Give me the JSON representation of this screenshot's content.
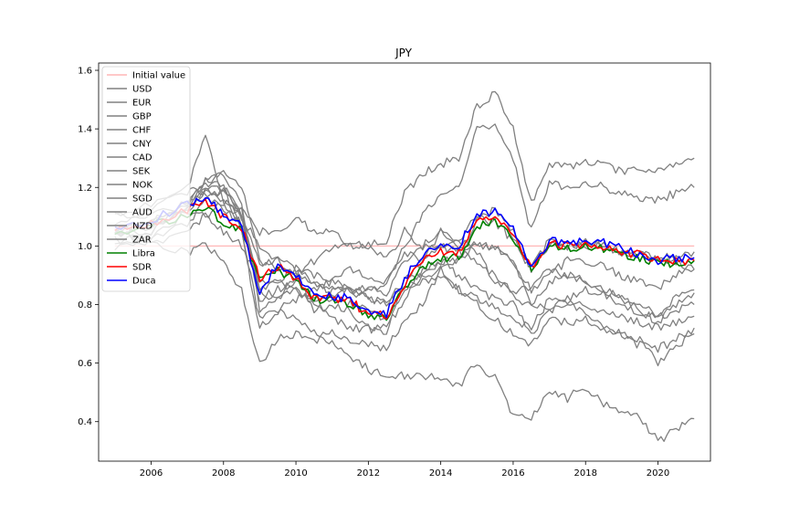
{
  "chart_data": {
    "type": "line",
    "title": "JPY",
    "xlabel": "",
    "ylabel": "",
    "xlim": [
      2004.55,
      2021.45
    ],
    "ylim": [
      0.265,
      1.625
    ],
    "x_ticks": [
      {
        "value": 2006,
        "label": "2006"
      },
      {
        "value": 2008,
        "label": "2008"
      },
      {
        "value": 2010,
        "label": "2010"
      },
      {
        "value": 2012,
        "label": "2012"
      },
      {
        "value": 2014,
        "label": "2014"
      },
      {
        "value": 2016,
        "label": "2016"
      },
      {
        "value": 2018,
        "label": "2018"
      },
      {
        "value": 2020,
        "label": "2020"
      }
    ],
    "y_ticks": [
      {
        "value": 0.4,
        "label": "0.4"
      },
      {
        "value": 0.6,
        "label": "0.6"
      },
      {
        "value": 0.8,
        "label": "0.8"
      },
      {
        "value": 1.0,
        "label": "1.0"
      },
      {
        "value": 1.2,
        "label": "1.2"
      },
      {
        "value": 1.4,
        "label": "1.4"
      },
      {
        "value": 1.6,
        "label": "1.6"
      }
    ],
    "legend_position": "top-left",
    "grid": false,
    "series": [
      {
        "name": "Initial value",
        "color": "#ffb6b6",
        "x": [
          2005.0,
          2021.0
        ],
        "y": [
          1.0,
          1.0
        ]
      },
      {
        "name": "USD",
        "color": "#808080",
        "x": [
          2005.0,
          2006.0,
          2007.0,
          2007.5,
          2008.0,
          2008.5,
          2009.0,
          2009.5,
          2010.0,
          2010.5,
          2011.0,
          2011.5,
          2012.0,
          2012.5,
          2013.0,
          2013.5,
          2014.0,
          2014.5,
          2015.0,
          2015.5,
          2016.0,
          2016.5,
          2017.0,
          2017.5,
          2018.0,
          2018.5,
          2019.0,
          2019.5,
          2020.0,
          2020.5,
          2021.0
        ],
        "y": [
          1.05,
          1.08,
          1.12,
          1.1,
          1.05,
          1.0,
          0.88,
          0.88,
          0.84,
          0.8,
          0.75,
          0.72,
          0.72,
          0.72,
          0.82,
          0.9,
          0.95,
          0.95,
          1.1,
          1.12,
          1.05,
          0.92,
          1.02,
          1.0,
          1.0,
          1.0,
          0.98,
          0.97,
          0.96,
          0.95,
          0.92
        ]
      },
      {
        "name": "EUR",
        "color": "#808080",
        "x": [
          2005.0,
          2006.0,
          2007.0,
          2007.5,
          2008.0,
          2008.5,
          2009.0,
          2009.5,
          2010.0,
          2010.5,
          2011.0,
          2011.5,
          2012.0,
          2012.5,
          2013.0,
          2013.5,
          2014.0,
          2014.5,
          2015.0,
          2015.5,
          2016.0,
          2016.5,
          2017.0,
          2017.5,
          2018.0,
          2018.5,
          2019.0,
          2019.5,
          2020.0,
          2020.5,
          2021.0
        ],
        "y": [
          1.0,
          1.05,
          1.15,
          1.22,
          1.25,
          1.2,
          0.95,
          0.95,
          0.9,
          0.78,
          0.8,
          0.78,
          0.72,
          0.7,
          0.88,
          0.95,
          1.05,
          1.0,
          1.0,
          1.0,
          0.95,
          0.85,
          0.9,
          0.95,
          0.95,
          0.93,
          0.9,
          0.88,
          0.86,
          0.9,
          0.92
        ]
      },
      {
        "name": "GBP",
        "color": "#808080",
        "x": [
          2005.0,
          2006.0,
          2007.0,
          2007.5,
          2008.0,
          2008.5,
          2009.0,
          2009.5,
          2010.0,
          2010.5,
          2011.0,
          2011.5,
          2012.0,
          2012.5,
          2013.0,
          2013.5,
          2014.0,
          2014.5,
          2015.0,
          2015.5,
          2016.0,
          2016.5,
          2017.0,
          2017.5,
          2018.0,
          2018.5,
          2019.0,
          2019.5,
          2020.0,
          2020.5,
          2021.0
        ],
        "y": [
          1.1,
          1.12,
          1.2,
          1.38,
          1.15,
          1.05,
          0.75,
          0.78,
          0.75,
          0.7,
          0.7,
          0.68,
          0.67,
          0.65,
          0.75,
          0.8,
          0.92,
          0.96,
          1.0,
          1.0,
          0.95,
          0.8,
          0.78,
          0.82,
          0.85,
          0.84,
          0.8,
          0.76,
          0.76,
          0.78,
          0.8
        ]
      },
      {
        "name": "CHF",
        "color": "#808080",
        "x": [
          2005.0,
          2006.0,
          2007.0,
          2007.5,
          2008.0,
          2008.5,
          2009.0,
          2009.5,
          2010.0,
          2010.5,
          2011.0,
          2011.5,
          2012.0,
          2012.5,
          2013.0,
          2013.5,
          2014.0,
          2014.5,
          2015.0,
          2015.5,
          2016.0,
          2016.5,
          2017.0,
          2017.5,
          2018.0,
          2018.5,
          2019.0,
          2019.5,
          2020.0,
          2020.5,
          2021.0
        ],
        "y": [
          1.02,
          1.0,
          1.05,
          1.1,
          1.15,
          1.12,
          1.05,
          1.05,
          1.1,
          1.05,
          1.05,
          1.0,
          1.0,
          1.02,
          1.18,
          1.25,
          1.28,
          1.3,
          1.48,
          1.52,
          1.4,
          1.15,
          1.28,
          1.27,
          1.29,
          1.28,
          1.25,
          1.26,
          1.26,
          1.28,
          1.3
        ]
      },
      {
        "name": "CNY",
        "color": "#808080",
        "x": [
          2005.0,
          2006.0,
          2007.0,
          2007.5,
          2008.0,
          2008.5,
          2009.0,
          2009.5,
          2010.0,
          2010.5,
          2011.0,
          2011.5,
          2012.0,
          2012.5,
          2013.0,
          2013.5,
          2014.0,
          2014.5,
          2015.0,
          2015.5,
          2016.0,
          2016.5,
          2017.0,
          2017.5,
          2018.0,
          2018.5,
          2019.0,
          2019.5,
          2020.0,
          2020.5,
          2021.0
        ],
        "y": [
          1.1,
          1.14,
          1.18,
          1.2,
          1.15,
          1.1,
          1.0,
          0.95,
          0.92,
          0.88,
          0.84,
          0.85,
          0.86,
          0.86,
          1.0,
          1.1,
          1.18,
          1.2,
          1.4,
          1.42,
          1.3,
          1.05,
          1.22,
          1.2,
          1.22,
          1.2,
          1.18,
          1.16,
          1.16,
          1.18,
          1.2
        ]
      },
      {
        "name": "CAD",
        "color": "#808080",
        "x": [
          2005.0,
          2006.0,
          2007.0,
          2007.5,
          2008.0,
          2008.5,
          2009.0,
          2009.5,
          2010.0,
          2010.5,
          2011.0,
          2011.5,
          2012.0,
          2012.5,
          2013.0,
          2013.5,
          2014.0,
          2014.5,
          2015.0,
          2015.5,
          2016.0,
          2016.5,
          2017.0,
          2017.5,
          2018.0,
          2018.5,
          2019.0,
          2019.5,
          2020.0,
          2020.5,
          2021.0
        ],
        "y": [
          1.0,
          1.02,
          1.08,
          1.15,
          1.2,
          1.1,
          0.85,
          0.88,
          0.92,
          0.9,
          0.88,
          0.85,
          0.82,
          0.8,
          0.85,
          0.88,
          0.9,
          0.85,
          0.82,
          0.8,
          0.75,
          0.72,
          0.82,
          0.8,
          0.8,
          0.78,
          0.76,
          0.74,
          0.72,
          0.74,
          0.76
        ]
      },
      {
        "name": "SEK",
        "color": "#808080",
        "x": [
          2005.0,
          2006.0,
          2007.0,
          2007.5,
          2008.0,
          2008.5,
          2009.0,
          2009.5,
          2010.0,
          2010.5,
          2011.0,
          2011.5,
          2012.0,
          2012.5,
          2013.0,
          2013.5,
          2014.0,
          2014.5,
          2015.0,
          2015.5,
          2016.0,
          2016.5,
          2017.0,
          2017.5,
          2018.0,
          2018.5,
          2019.0,
          2019.5,
          2020.0,
          2020.5,
          2021.0
        ],
        "y": [
          1.05,
          1.05,
          1.12,
          1.2,
          1.2,
          1.1,
          0.85,
          0.82,
          0.85,
          0.8,
          0.82,
          0.8,
          0.78,
          0.75,
          0.85,
          0.92,
          0.95,
          0.9,
          0.85,
          0.82,
          0.8,
          0.7,
          0.78,
          0.8,
          0.78,
          0.72,
          0.7,
          0.66,
          0.65,
          0.68,
          0.72
        ]
      },
      {
        "name": "NOK",
        "color": "#808080",
        "x": [
          2005.0,
          2006.0,
          2007.0,
          2007.5,
          2008.0,
          2008.5,
          2009.0,
          2009.5,
          2010.0,
          2010.5,
          2011.0,
          2011.5,
          2012.0,
          2012.5,
          2013.0,
          2013.5,
          2014.0,
          2014.5,
          2015.0,
          2015.5,
          2016.0,
          2016.5,
          2017.0,
          2017.5,
          2018.0,
          2018.5,
          2019.0,
          2019.5,
          2020.0,
          2020.5,
          2021.0
        ],
        "y": [
          1.05,
          1.06,
          1.12,
          1.18,
          1.18,
          1.12,
          0.8,
          0.85,
          0.88,
          0.82,
          0.84,
          0.85,
          0.82,
          0.8,
          0.88,
          0.9,
          0.92,
          0.85,
          0.8,
          0.75,
          0.7,
          0.66,
          0.75,
          0.74,
          0.75,
          0.72,
          0.7,
          0.68,
          0.6,
          0.66,
          0.7
        ]
      },
      {
        "name": "SGD",
        "color": "#808080",
        "x": [
          2005.0,
          2006.0,
          2007.0,
          2007.5,
          2008.0,
          2008.5,
          2009.0,
          2009.5,
          2010.0,
          2010.5,
          2011.0,
          2011.5,
          2012.0,
          2012.5,
          2013.0,
          2013.5,
          2014.0,
          2014.5,
          2015.0,
          2015.5,
          2016.0,
          2016.5,
          2017.0,
          2017.5,
          2018.0,
          2018.5,
          2019.0,
          2019.5,
          2020.0,
          2020.5,
          2021.0
        ],
        "y": [
          1.08,
          1.1,
          1.15,
          1.18,
          1.12,
          1.08,
          0.95,
          0.92,
          0.9,
          0.88,
          0.86,
          0.86,
          0.85,
          0.84,
          0.95,
          1.0,
          1.05,
          1.02,
          1.1,
          1.08,
          1.02,
          0.92,
          1.0,
          1.0,
          1.02,
          1.0,
          0.98,
          0.97,
          0.96,
          0.96,
          0.98
        ]
      },
      {
        "name": "AUD",
        "color": "#808080",
        "x": [
          2005.0,
          2006.0,
          2007.0,
          2007.5,
          2008.0,
          2008.5,
          2009.0,
          2009.5,
          2010.0,
          2010.5,
          2011.0,
          2011.5,
          2012.0,
          2012.5,
          2013.0,
          2013.5,
          2014.0,
          2014.5,
          2015.0,
          2015.5,
          2016.0,
          2016.5,
          2017.0,
          2017.5,
          2018.0,
          2018.5,
          2019.0,
          2019.5,
          2020.0,
          2020.5,
          2021.0
        ],
        "y": [
          1.05,
          1.08,
          1.15,
          1.22,
          1.25,
          1.15,
          0.78,
          0.82,
          0.9,
          0.95,
          1.0,
          1.02,
          1.0,
          0.95,
          1.05,
          1.0,
          1.0,
          0.98,
          0.95,
          0.9,
          0.82,
          0.8,
          0.88,
          0.9,
          0.88,
          0.85,
          0.82,
          0.8,
          0.76,
          0.82,
          0.85
        ]
      },
      {
        "name": "NZD",
        "color": "#808080",
        "x": [
          2005.0,
          2006.0,
          2007.0,
          2007.5,
          2008.0,
          2008.5,
          2009.0,
          2009.5,
          2010.0,
          2010.5,
          2011.0,
          2011.5,
          2012.0,
          2012.5,
          2013.0,
          2013.5,
          2014.0,
          2014.5,
          2015.0,
          2015.5,
          2016.0,
          2016.5,
          2017.0,
          2017.5,
          2018.0,
          2018.5,
          2019.0,
          2019.5,
          2020.0,
          2020.5,
          2021.0
        ],
        "y": [
          1.05,
          1.02,
          1.12,
          1.22,
          1.2,
          1.05,
          0.72,
          0.78,
          0.82,
          0.85,
          0.88,
          0.92,
          0.9,
          0.88,
          0.98,
          0.95,
          1.0,
          1.02,
          0.98,
          0.88,
          0.85,
          0.85,
          0.92,
          0.9,
          0.88,
          0.85,
          0.82,
          0.78,
          0.74,
          0.8,
          0.84
        ]
      },
      {
        "name": "ZAR",
        "color": "#808080",
        "x": [
          2005.0,
          2006.0,
          2007.0,
          2007.5,
          2008.0,
          2008.5,
          2009.0,
          2009.5,
          2010.0,
          2010.5,
          2011.0,
          2011.5,
          2012.0,
          2012.5,
          2013.0,
          2013.5,
          2014.0,
          2014.5,
          2015.0,
          2015.5,
          2016.0,
          2016.5,
          2017.0,
          2017.5,
          2018.0,
          2018.5,
          2019.0,
          2019.5,
          2020.0,
          2020.5,
          2021.0
        ],
        "y": [
          1.05,
          1.0,
          0.98,
          1.0,
          0.95,
          0.85,
          0.6,
          0.68,
          0.7,
          0.68,
          0.68,
          0.62,
          0.58,
          0.55,
          0.56,
          0.55,
          0.55,
          0.52,
          0.6,
          0.55,
          0.42,
          0.42,
          0.5,
          0.48,
          0.52,
          0.46,
          0.44,
          0.42,
          0.33,
          0.38,
          0.41
        ]
      },
      {
        "name": "Libra",
        "color": "#008000",
        "x": [
          2005.0,
          2006.0,
          2007.0,
          2007.5,
          2008.0,
          2008.5,
          2009.0,
          2009.5,
          2010.0,
          2010.5,
          2011.0,
          2011.5,
          2012.0,
          2012.5,
          2013.0,
          2013.5,
          2014.0,
          2014.5,
          2015.0,
          2015.5,
          2016.0,
          2016.5,
          2017.0,
          2017.5,
          2018.0,
          2018.5,
          2019.0,
          2019.5,
          2020.0,
          2020.5,
          2021.0
        ],
        "y": [
          1.04,
          1.07,
          1.1,
          1.13,
          1.08,
          1.05,
          0.88,
          0.92,
          0.88,
          0.82,
          0.81,
          0.8,
          0.76,
          0.75,
          0.86,
          0.93,
          0.96,
          0.96,
          1.07,
          1.09,
          1.03,
          0.92,
          1.0,
          0.99,
          1.0,
          0.99,
          0.97,
          0.96,
          0.94,
          0.94,
          0.95
        ]
      },
      {
        "name": "SDR",
        "color": "#ff0000",
        "x": [
          2005.0,
          2006.0,
          2007.0,
          2007.5,
          2008.0,
          2008.5,
          2009.0,
          2009.5,
          2010.0,
          2010.5,
          2011.0,
          2011.5,
          2012.0,
          2012.5,
          2013.0,
          2013.5,
          2014.0,
          2014.5,
          2015.0,
          2015.5,
          2016.0,
          2016.5,
          2017.0,
          2017.5,
          2018.0,
          2018.5,
          2019.0,
          2019.5,
          2020.0,
          2020.5,
          2021.0
        ],
        "y": [
          1.05,
          1.08,
          1.12,
          1.15,
          1.1,
          1.06,
          0.89,
          0.93,
          0.89,
          0.82,
          0.82,
          0.81,
          0.77,
          0.76,
          0.87,
          0.95,
          0.98,
          0.98,
          1.09,
          1.11,
          1.04,
          0.93,
          1.01,
          1.0,
          1.01,
          1.0,
          0.98,
          0.97,
          0.95,
          0.95,
          0.95
        ]
      },
      {
        "name": "Duca",
        "color": "#0000ff",
        "x": [
          2005.0,
          2006.0,
          2007.0,
          2007.5,
          2008.0,
          2008.5,
          2009.0,
          2009.5,
          2010.0,
          2010.5,
          2011.0,
          2011.5,
          2012.0,
          2012.5,
          2013.0,
          2013.5,
          2014.0,
          2014.5,
          2015.0,
          2015.5,
          2016.0,
          2016.5,
          2017.0,
          2017.5,
          2018.0,
          2018.5,
          2019.0,
          2019.5,
          2020.0,
          2020.5,
          2021.0
        ],
        "y": [
          1.06,
          1.09,
          1.14,
          1.17,
          1.1,
          1.07,
          0.84,
          0.94,
          0.9,
          0.83,
          0.83,
          0.82,
          0.78,
          0.77,
          0.89,
          0.97,
          1.0,
          1.0,
          1.11,
          1.12,
          1.06,
          0.92,
          1.02,
          1.01,
          1.02,
          1.01,
          0.99,
          0.97,
          0.95,
          0.96,
          0.96
        ]
      }
    ]
  }
}
